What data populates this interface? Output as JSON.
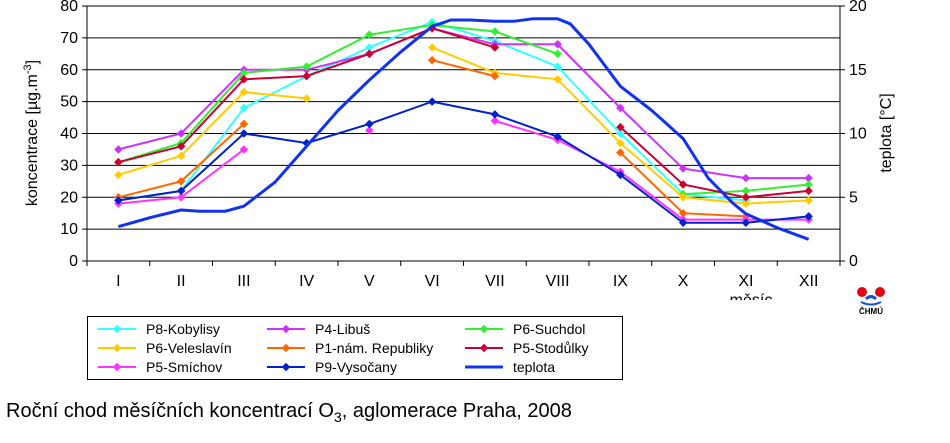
{
  "chart_data": {
    "type": "line",
    "title": "",
    "categories": [
      "I",
      "II",
      "III",
      "IV",
      "V",
      "VI",
      "VII",
      "VIII",
      "IX",
      "X",
      "XI",
      "XII"
    ],
    "xlabel": "měsíc",
    "ylabel": "koncentrace [µg.m-3]",
    "y2label": "teplota [°C]",
    "ylim": [
      0,
      80
    ],
    "y2lim": [
      0,
      20
    ],
    "yticks": [
      "0",
      "10",
      "20",
      "30",
      "40",
      "50",
      "60",
      "70",
      "80"
    ],
    "y2ticks": [
      "0",
      "5",
      "10",
      "15",
      "20"
    ],
    "grid": true,
    "legend_position": "bottom",
    "series": [
      {
        "name": "P8-Kobylisy",
        "color": "#33FFFF",
        "marker": "diamond",
        "values": [
          19,
          22,
          48,
          58,
          67,
          75,
          69,
          61,
          40,
          21,
          19,
          null
        ]
      },
      {
        "name": "P4-Libuš",
        "color": "#CC33FF",
        "marker": "diamond",
        "values": [
          35,
          40,
          60,
          60,
          65,
          73,
          68,
          68,
          48,
          29,
          26,
          26
        ]
      },
      {
        "name": "P6-Suchdol",
        "color": "#33EE33",
        "marker": "diamond",
        "values": [
          31,
          37,
          59,
          61,
          71,
          74,
          72,
          65,
          null,
          21,
          22,
          24
        ]
      },
      {
        "name": "P6-Veleslavín",
        "color": "#FFCC00",
        "marker": "diamond",
        "values": [
          27,
          33,
          53,
          51,
          null,
          67,
          59,
          57,
          37,
          20,
          18,
          19
        ]
      },
      {
        "name": "P1-nám. Republiky",
        "color": "#FF6600",
        "marker": "diamond",
        "values": [
          20,
          25,
          43,
          null,
          null,
          63,
          58,
          null,
          34,
          15,
          14,
          null
        ]
      },
      {
        "name": "P5-Stodůlky",
        "color": "#CC0033",
        "marker": "diamond",
        "values": [
          31,
          36,
          57,
          58,
          65,
          73,
          67,
          null,
          42,
          24,
          20,
          22
        ]
      },
      {
        "name": "P5-Smíchov",
        "color": "#FF33FF",
        "marker": "diamond",
        "values": [
          18,
          20,
          35,
          null,
          41,
          null,
          44,
          38,
          28,
          13,
          13,
          13
        ]
      },
      {
        "name": "P9-Vysočany",
        "color": "#0022CC",
        "marker": "diamond",
        "values": [
          19,
          22,
          40,
          37,
          43,
          50,
          46,
          39,
          27,
          12,
          12,
          14
        ]
      },
      {
        "name": "teplota",
        "color": "#1133EE",
        "marker": "none",
        "axis": "right",
        "x": [
          1,
          1.5,
          2,
          2.3,
          2.7,
          3,
          3.5,
          4,
          4.5,
          5,
          5.5,
          6,
          6.3,
          6.6,
          7,
          7.3,
          7.6,
          8,
          8.2,
          8.5,
          9,
          9.5,
          10,
          10.4,
          10.8,
          11,
          11.5,
          12
        ],
        "values": [
          2.7,
          3.4,
          4.0,
          3.9,
          3.9,
          4.3,
          6.2,
          9.0,
          11.8,
          14.2,
          16.4,
          18.4,
          18.9,
          18.9,
          18.8,
          18.8,
          19.0,
          19.0,
          18.6,
          17.0,
          13.7,
          11.8,
          9.6,
          6.5,
          4.5,
          3.7,
          2.6,
          1.7
        ]
      }
    ]
  },
  "caption": {
    "prefix": "Roční chod měsíčních koncentrací O",
    "sub": "3",
    "suffix": ", aglomerace Praha, 2008"
  },
  "logo": {
    "text": "ČHMÚ",
    "icon": "chmu-logo-icon"
  }
}
